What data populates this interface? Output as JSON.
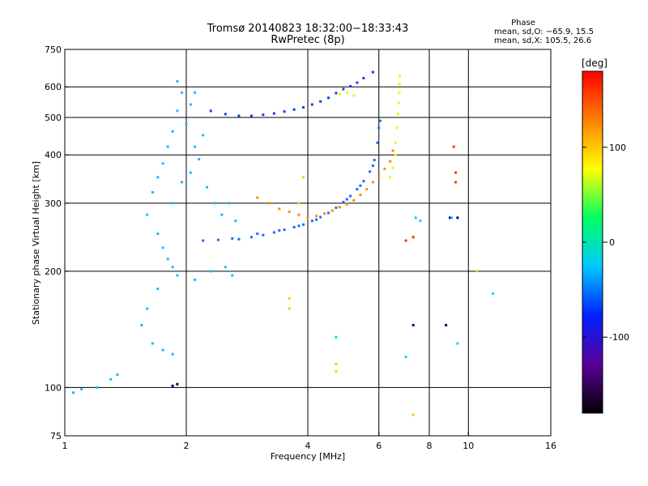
{
  "chart_data": {
    "type": "scatter",
    "title": "Tromsø 20140823 18:32:00−18:33:43",
    "subtitle": "RwPretec (8p)",
    "xlabel": "Frequency [MHz]",
    "ylabel": "Stationary phase Virtual Height [km]",
    "x_scale": "log",
    "y_scale": "log",
    "xlim": [
      1,
      16
    ],
    "ylim": [
      75,
      750
    ],
    "x_ticks": [
      1,
      2,
      4,
      6,
      8,
      10,
      16
    ],
    "y_ticks": [
      75,
      100,
      200,
      300,
      400,
      500,
      600,
      750
    ],
    "x_gridlines": [
      2,
      4,
      6,
      8,
      10
    ],
    "y_gridlines": [
      100,
      200,
      300,
      400,
      500,
      600
    ],
    "grid": true,
    "stats": {
      "title": "Phase",
      "line_o": "mean, sd,O: −65.9, 15.5",
      "line_x": "mean, sd,X: 105.5, 26.6"
    },
    "colorbar": {
      "label": "[deg]",
      "min": -180,
      "max": 180,
      "ticks": [
        100,
        0,
        -100
      ],
      "ramp": [
        "#000000",
        "#5a009a",
        "#0020ff",
        "#00c8ff",
        "#00ff60",
        "#ffff00",
        "#ff8000",
        "#ff0000"
      ]
    },
    "series": [
      {
        "color": "#1e6cff",
        "points": [
          [
            2.7,
            242
          ],
          [
            2.9,
            245
          ],
          [
            3.1,
            248
          ],
          [
            3.3,
            252
          ],
          [
            3.5,
            256
          ],
          [
            3.7,
            260
          ],
          [
            3.9,
            264
          ],
          [
            4.1,
            270
          ],
          [
            4.3,
            276
          ],
          [
            4.5,
            283
          ],
          [
            4.7,
            292
          ],
          [
            4.9,
            302
          ],
          [
            5.1,
            313
          ],
          [
            5.3,
            326
          ],
          [
            5.5,
            342
          ],
          [
            5.7,
            362
          ],
          [
            5.85,
            388
          ],
          [
            5.95,
            430
          ],
          [
            6.0,
            470
          ],
          [
            6.05,
            490
          ],
          [
            2.2,
            240
          ],
          [
            2.4,
            241
          ],
          [
            2.6,
            243
          ],
          [
            3.0,
            250
          ],
          [
            3.4,
            255
          ],
          [
            3.8,
            262
          ],
          [
            4.2,
            272
          ],
          [
            4.6,
            287
          ],
          [
            5.0,
            307
          ],
          [
            5.4,
            333
          ],
          [
            5.8,
            375
          ]
        ]
      },
      {
        "color": "#1a3fe0",
        "points": [
          [
            2.7,
            505
          ],
          [
            2.9,
            505
          ],
          [
            3.1,
            508
          ],
          [
            3.3,
            512
          ],
          [
            3.5,
            518
          ],
          [
            3.7,
            524
          ],
          [
            3.9,
            531
          ],
          [
            4.1,
            540
          ],
          [
            4.3,
            550
          ],
          [
            4.5,
            562
          ],
          [
            4.7,
            578
          ],
          [
            4.9,
            592
          ],
          [
            5.1,
            602
          ],
          [
            5.3,
            615
          ],
          [
            5.5,
            632
          ],
          [
            5.8,
            655
          ],
          [
            2.3,
            520
          ],
          [
            2.5,
            510
          ]
        ]
      },
      {
        "color": "#ff8a00",
        "points": [
          [
            4.0,
            275
          ],
          [
            4.2,
            278
          ],
          [
            4.4,
            282
          ],
          [
            4.6,
            287
          ],
          [
            4.8,
            293
          ],
          [
            5.0,
            298
          ],
          [
            5.2,
            305
          ],
          [
            5.4,
            315
          ],
          [
            5.6,
            326
          ],
          [
            5.8,
            340
          ],
          [
            6.0,
            352
          ],
          [
            6.2,
            368
          ],
          [
            6.4,
            385
          ],
          [
            6.5,
            410
          ],
          [
            3.0,
            310
          ],
          [
            3.2,
            300
          ],
          [
            3.4,
            290
          ],
          [
            3.6,
            285
          ],
          [
            3.8,
            280
          ]
        ]
      },
      {
        "color": "#e0ff00",
        "points": [
          [
            6.6,
            430
          ],
          [
            6.65,
            470
          ],
          [
            6.7,
            510
          ],
          [
            6.72,
            545
          ],
          [
            6.74,
            580
          ],
          [
            6.75,
            610
          ],
          [
            6.76,
            640
          ],
          [
            6.6,
            400
          ],
          [
            6.5,
            370
          ],
          [
            6.4,
            350
          ],
          [
            5.0,
            580
          ],
          [
            5.2,
            570
          ],
          [
            4.8,
            575
          ]
        ]
      },
      {
        "color": "#29b6f6",
        "points": [
          [
            1.6,
            280
          ],
          [
            1.65,
            320
          ],
          [
            1.7,
            350
          ],
          [
            1.75,
            380
          ],
          [
            1.8,
            420
          ],
          [
            1.85,
            460
          ],
          [
            1.9,
            520
          ],
          [
            1.95,
            580
          ],
          [
            1.9,
            620
          ],
          [
            1.85,
            300
          ],
          [
            1.95,
            340
          ],
          [
            2.05,
            360
          ],
          [
            2.15,
            390
          ],
          [
            2.25,
            330
          ],
          [
            2.35,
            300
          ],
          [
            2.45,
            280
          ],
          [
            2.55,
            300
          ],
          [
            2.65,
            270
          ],
          [
            1.7,
            250
          ],
          [
            1.75,
            230
          ],
          [
            1.8,
            215
          ],
          [
            1.85,
            205
          ],
          [
            1.9,
            195
          ],
          [
            1.7,
            180
          ],
          [
            1.6,
            160
          ],
          [
            1.55,
            145
          ],
          [
            1.65,
            130
          ],
          [
            1.75,
            125
          ],
          [
            1.85,
            122
          ],
          [
            2.1,
            190
          ],
          [
            2.3,
            200
          ],
          [
            2.5,
            205
          ],
          [
            2.6,
            195
          ],
          [
            1.3,
            105
          ],
          [
            1.35,
            108
          ],
          [
            1.2,
            100
          ],
          [
            1.1,
            99
          ],
          [
            1.05,
            97
          ],
          [
            2.1,
            420
          ],
          [
            2.2,
            450
          ],
          [
            2.0,
            480
          ],
          [
            2.05,
            540
          ],
          [
            2.1,
            580
          ]
        ]
      },
      {
        "color": "#ff3000",
        "points": [
          [
            7.3,
            245
          ],
          [
            7.0,
            240
          ],
          [
            9.3,
            340
          ],
          [
            9.3,
            360
          ],
          [
            9.2,
            420
          ]
        ]
      },
      {
        "color": "#ffcc00",
        "points": [
          [
            3.9,
            350
          ],
          [
            3.8,
            300
          ],
          [
            4.7,
            110
          ],
          [
            4.7,
            115
          ],
          [
            3.6,
            160
          ],
          [
            3.6,
            170
          ],
          [
            7.3,
            85
          ],
          [
            10.5,
            200
          ]
        ]
      },
      {
        "color": "#000080",
        "points": [
          [
            1.85,
            101
          ],
          [
            1.9,
            102
          ],
          [
            7.3,
            145
          ],
          [
            8.8,
            145
          ],
          [
            9.0,
            275
          ],
          [
            9.4,
            275
          ]
        ]
      },
      {
        "color": "#00d8ff",
        "points": [
          [
            7.4,
            275
          ],
          [
            7.6,
            270
          ],
          [
            9.1,
            275
          ],
          [
            9.4,
            130
          ],
          [
            11.5,
            175
          ],
          [
            4.7,
            135
          ],
          [
            7.0,
            120
          ]
        ]
      }
    ]
  }
}
